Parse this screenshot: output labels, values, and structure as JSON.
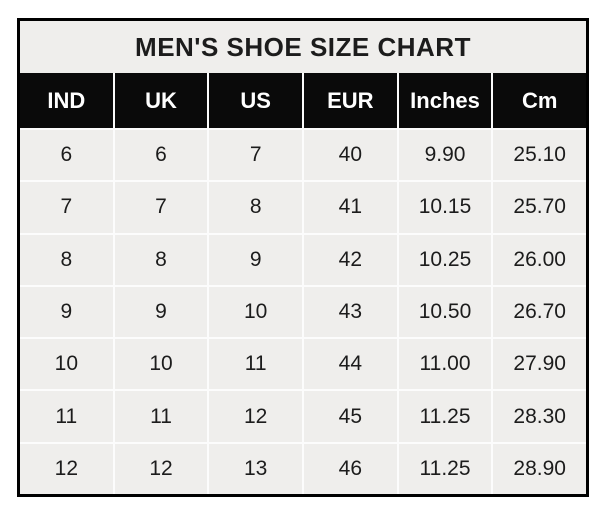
{
  "colors": {
    "border": "#000000",
    "header_bg": "#0a0a0a",
    "header_text": "#ffffff",
    "title_bg": "#efeeec",
    "cell_bg": "#efeeec",
    "grid_line": "#fcfcfc",
    "text": "#1c1c1c"
  },
  "chart_data": {
    "type": "table",
    "title": "MEN'S SHOE SIZE CHART",
    "columns": [
      "IND",
      "UK",
      "US",
      "EUR",
      "Inches",
      "Cm"
    ],
    "rows": [
      [
        "6",
        "6",
        "7",
        "40",
        "9.90",
        "25.10"
      ],
      [
        "7",
        "7",
        "8",
        "41",
        "10.15",
        "25.70"
      ],
      [
        "8",
        "8",
        "9",
        "42",
        "10.25",
        "26.00"
      ],
      [
        "9",
        "9",
        "10",
        "43",
        "10.50",
        "26.70"
      ],
      [
        "10",
        "10",
        "11",
        "44",
        "11.00",
        "27.90"
      ],
      [
        "11",
        "11",
        "12",
        "45",
        "11.25",
        "28.30"
      ],
      [
        "12",
        "12",
        "13",
        "46",
        "11.25",
        "28.90"
      ]
    ]
  }
}
